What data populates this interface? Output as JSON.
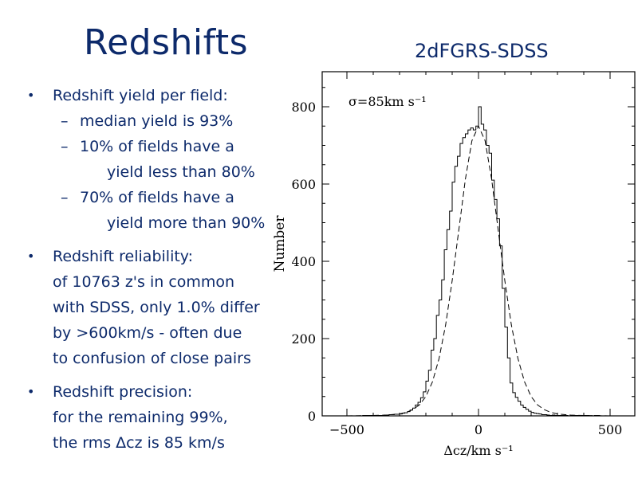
{
  "slide": {
    "title": "Redshifts",
    "bullets": [
      {
        "lead": "Redshift yield per field:",
        "subs": [
          {
            "lines": [
              "median yield is 93%"
            ]
          },
          {
            "lines": [
              "10% of fields have a",
              "yield less than 80%"
            ]
          },
          {
            "lines": [
              "70% of fields have a",
              "yield more than 90%"
            ]
          }
        ]
      },
      {
        "lead": "Redshift reliability:",
        "para": [
          "of 10763 z's in common",
          "with SDSS, only 1.0% differ",
          "by >600km/s - often due",
          "to confusion of close pairs"
        ]
      },
      {
        "lead": "Redshift precision:",
        "para": [
          "for the remaining 99%,",
          "the rms Δcz is 85 km/s"
        ]
      }
    ]
  },
  "colors": {
    "text": "#0d2a6b",
    "axes": "#000000"
  },
  "chart_data": {
    "type": "line",
    "title": "2dFGRS-SDSS",
    "annotation": "σ=85km s⁻¹",
    "xlabel": "Δcz/km s⁻¹",
    "ylabel": "Number",
    "xlim": [
      -590,
      590
    ],
    "ylim": [
      0,
      900
    ],
    "xticks": [
      -500,
      0,
      500
    ],
    "yticks": [
      0,
      200,
      400,
      600,
      800
    ],
    "grid": false,
    "series": [
      {
        "style": "histogram",
        "bin_width": 10,
        "x": [
          -500,
          -480,
          -460,
          -440,
          -420,
          -400,
          -380,
          -360,
          -340,
          -320,
          -300,
          -290,
          -280,
          -270,
          -260,
          -250,
          -240,
          -230,
          -220,
          -210,
          -200,
          -190,
          -180,
          -170,
          -160,
          -150,
          -140,
          -130,
          -120,
          -110,
          -100,
          -90,
          -80,
          -70,
          -60,
          -50,
          -40,
          -30,
          -20,
          -10,
          0,
          10,
          20,
          30,
          40,
          50,
          60,
          70,
          80,
          90,
          100,
          110,
          120,
          130,
          140,
          150,
          160,
          170,
          180,
          190,
          200,
          210,
          220,
          230,
          240,
          250,
          260,
          270,
          280,
          290,
          300,
          320,
          340,
          360,
          380,
          400,
          420,
          440,
          460,
          480,
          500
        ],
        "y": [
          0,
          0,
          0,
          1,
          1,
          0,
          1,
          2,
          3,
          4,
          5,
          7,
          8,
          11,
          15,
          20,
          28,
          35,
          47,
          62,
          90,
          118,
          170,
          200,
          260,
          300,
          352,
          430,
          482,
          530,
          605,
          646,
          672,
          705,
          720,
          730,
          740,
          745,
          740,
          750,
          800,
          755,
          740,
          700,
          680,
          610,
          560,
          510,
          440,
          330,
          230,
          150,
          85,
          60,
          48,
          38,
          28,
          22,
          17,
          12,
          9,
          7,
          6,
          5,
          3,
          3,
          2,
          1,
          2,
          1,
          1,
          1,
          0,
          1,
          0,
          1,
          0,
          1,
          0,
          0,
          0
        ]
      },
      {
        "style": "dashed-fit",
        "x": [
          -500,
          -450,
          -400,
          -350,
          -300,
          -275,
          -250,
          -225,
          -200,
          -175,
          -150,
          -125,
          -100,
          -75,
          -50,
          -25,
          0,
          25,
          50,
          75,
          100,
          125,
          150,
          175,
          200,
          225,
          250,
          275,
          300,
          350,
          400,
          450,
          500
        ],
        "y": [
          0,
          0.5,
          1,
          2,
          5,
          9,
          16,
          28,
          50,
          88,
          148,
          235,
          350,
          480,
          612,
          712,
          750,
          712,
          612,
          480,
          350,
          235,
          148,
          88,
          50,
          28,
          16,
          9,
          5,
          2,
          1,
          0.5,
          0
        ]
      }
    ]
  }
}
